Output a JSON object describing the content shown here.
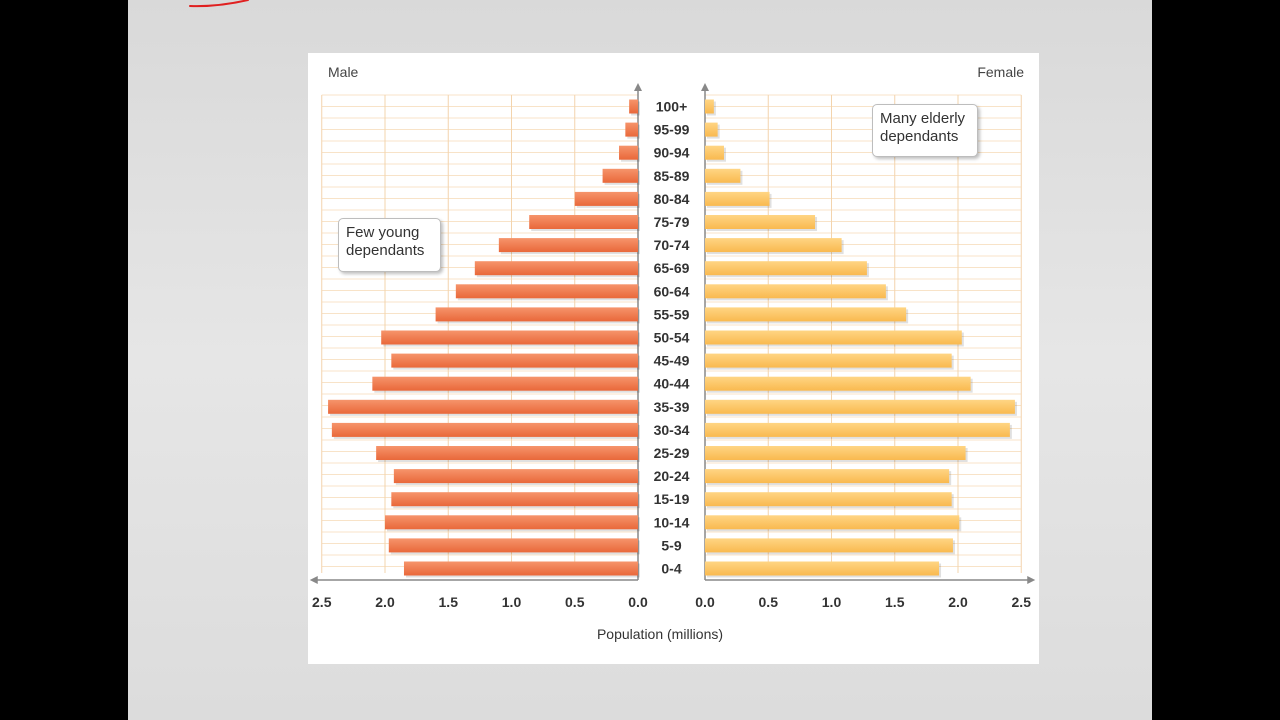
{
  "chart_data": {
    "type": "bar",
    "subtype": "population-pyramid",
    "title": "",
    "xlabel": "Population (millions)",
    "ylabel": "",
    "left_label": "Male",
    "right_label": "Female",
    "xlim": [
      0,
      2.5
    ],
    "x_ticks": [
      "0.0",
      "0.5",
      "1.0",
      "1.5",
      "2.0",
      "2.5"
    ],
    "grid": true,
    "categories": [
      "0-4",
      "5-9",
      "10-14",
      "15-19",
      "20-24",
      "25-29",
      "30-34",
      "35-39",
      "40-44",
      "45-49",
      "50-54",
      "55-59",
      "60-64",
      "65-69",
      "70-74",
      "75-79",
      "80-84",
      "85-89",
      "90-94",
      "95-99",
      "100+"
    ],
    "series": [
      {
        "name": "Male",
        "color": "#f07c4e",
        "values": [
          1.85,
          1.97,
          2.0,
          1.95,
          1.93,
          2.07,
          2.42,
          2.45,
          2.1,
          1.95,
          2.03,
          1.6,
          1.44,
          1.29,
          1.1,
          0.86,
          0.5,
          0.28,
          0.15,
          0.1,
          0.07
        ]
      },
      {
        "name": "Female",
        "color": "#ffc86a",
        "values": [
          1.85,
          1.96,
          2.01,
          1.95,
          1.93,
          2.06,
          2.41,
          2.45,
          2.1,
          1.95,
          2.03,
          1.59,
          1.43,
          1.28,
          1.08,
          0.87,
          0.51,
          0.28,
          0.15,
          0.1,
          0.07
        ]
      }
    ],
    "annotations": [
      {
        "text": "Few young\ndependants",
        "side": "left"
      },
      {
        "text": "Many elderly\ndependants",
        "side": "right"
      }
    ]
  }
}
